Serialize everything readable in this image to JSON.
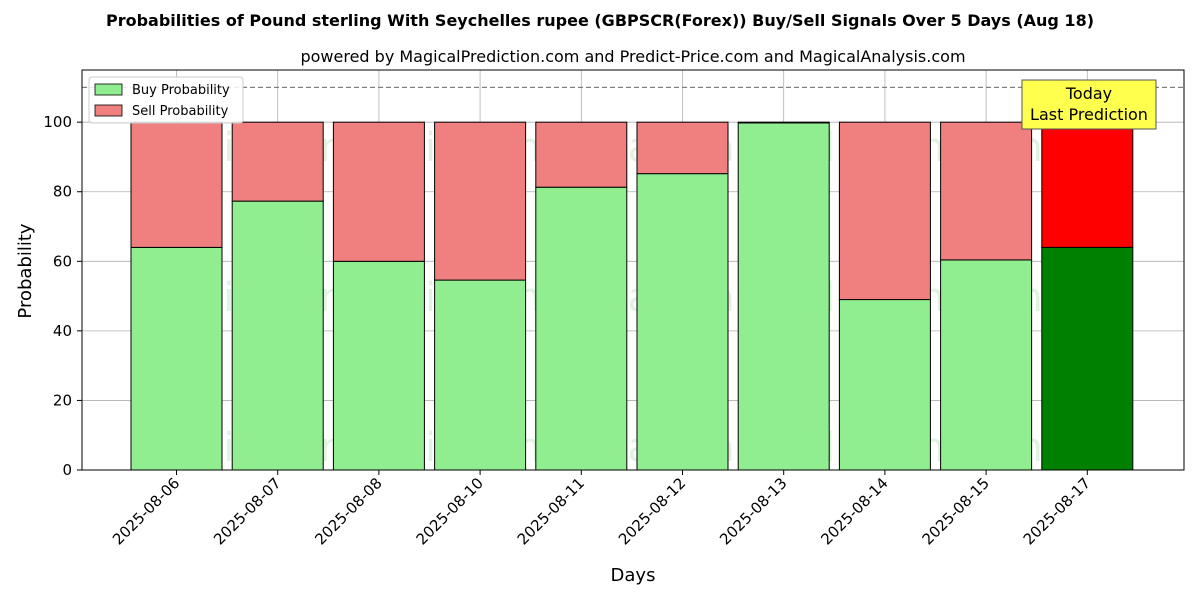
{
  "chart_data": {
    "type": "bar",
    "stacked": true,
    "title": "Probabilities of Pound sterling With Seychelles rupee (GBPSCR(Forex)) Buy/Sell Signals Over 5 Days (Aug 18)",
    "subtitle": "powered by MagicalPrediction.com and Predict-Price.com and MagicalAnalysis.com",
    "xlabel": "Days",
    "ylabel": "Probability",
    "ylim": [
      0,
      115
    ],
    "yticks": [
      0,
      20,
      40,
      60,
      80,
      100
    ],
    "grid": true,
    "legend_position": "top-left",
    "reference_line": 110,
    "categories": [
      "2025-08-06",
      "2025-08-07",
      "2025-08-08",
      "2025-08-10",
      "2025-08-11",
      "2025-08-12",
      "2025-08-13",
      "2025-08-14",
      "2025-08-15",
      "2025-08-17"
    ],
    "series": [
      {
        "name": "Buy Probability",
        "values": [
          64,
          77.3,
          60,
          54.6,
          81.3,
          85.2,
          99.8,
          49,
          60.4,
          64
        ],
        "color": "#90ee90",
        "highlight_color": "#008000"
      },
      {
        "name": "Sell Probability",
        "values": [
          36,
          22.7,
          40,
          45.4,
          18.7,
          14.8,
          0.2,
          51,
          39.6,
          36
        ],
        "color": "#f08080",
        "highlight_color": "#ff0000"
      }
    ],
    "highlight_index": 9,
    "annotation": {
      "lines": [
        "Today",
        "Last Prediction"
      ],
      "background": "#ffff4d"
    },
    "watermarks": [
      "MagicalAnalysis.com",
      "MagicalPrediction.com"
    ]
  }
}
